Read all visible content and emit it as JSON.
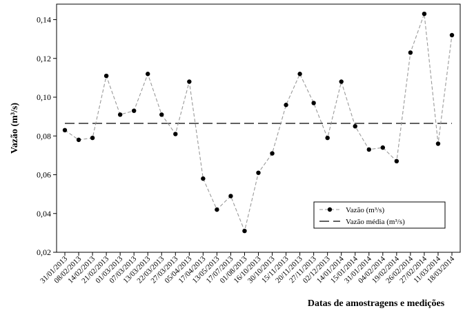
{
  "chart_data": {
    "type": "line",
    "xlabel": "Datas de amostragens e medições",
    "ylabel": "Vazão (m³/s)",
    "ylim": [
      0.02,
      0.148
    ],
    "yticks": [
      0.02,
      0.04,
      0.06,
      0.08,
      0.1,
      0.12,
      0.14
    ],
    "ytick_labels": [
      "0,02",
      "0,04",
      "0,06",
      "0,08",
      "0,10",
      "0,12",
      "0,14"
    ],
    "categories": [
      "31/01/2013",
      "08/02/2013",
      "14/02/2013",
      "21/02/2013",
      "01/03/2013",
      "07/03/2013",
      "13/03/2013",
      "22/03/2013",
      "27/03/2013",
      "05/04/2013",
      "17/04/2013",
      "13/05/2013",
      "17/07/2013",
      "01/08/2013",
      "16/10/2013",
      "30/10/2013",
      "15/11/2013",
      "20/11/2013",
      "27/11/2013",
      "02/12/2013",
      "14/01/2014",
      "15/01/2014",
      "31/01/2014",
      "04/02/2014",
      "19/02/2014",
      "26/02/2014",
      "27/02/2014",
      "11/03/2014",
      "18/03/2014"
    ],
    "series": [
      {
        "name": "Vazão (m³/s)",
        "style": "dashed-with-markers",
        "color": "#999999",
        "marker_color": "#000000",
        "values": [
          0.083,
          0.078,
          0.079,
          0.111,
          0.091,
          0.093,
          0.112,
          0.091,
          0.081,
          0.108,
          0.058,
          0.042,
          0.049,
          0.031,
          0.061,
          0.071,
          0.096,
          0.112,
          0.097,
          0.079,
          0.108,
          0.085,
          0.073,
          0.074,
          0.067,
          0.123,
          0.143,
          0.076,
          0.132
        ]
      },
      {
        "name": "Vazão média (m³/s)",
        "style": "long-dash",
        "color": "#000000",
        "value": 0.0865
      }
    ],
    "legend_position": "lower-right",
    "grid": false
  }
}
